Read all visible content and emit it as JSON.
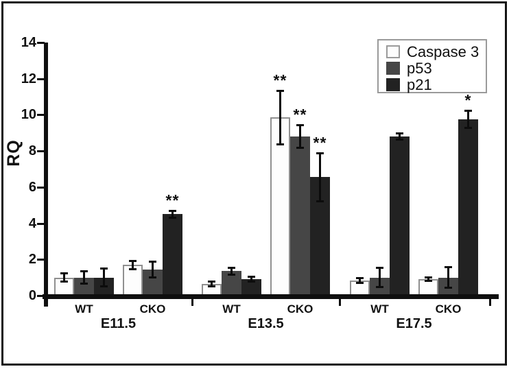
{
  "figure": {
    "border_color": "#141414",
    "background": "#ffffff"
  },
  "chart_data": {
    "type": "bar",
    "title": "",
    "xlabel": "",
    "ylabel": "RQ",
    "ylim": [
      0,
      14
    ],
    "yticks": [
      0,
      2,
      4,
      6,
      8,
      10,
      12,
      14
    ],
    "grid": false,
    "legend_position": "top-right",
    "error_bars": true,
    "series": [
      {
        "name": "Caspase 3",
        "fill": "#fdfdfd",
        "stroke": "#8f8f8f"
      },
      {
        "name": "p53",
        "fill": "#464646",
        "stroke": "#464646"
      },
      {
        "name": "p21",
        "fill": "#222222",
        "stroke": "#222222"
      }
    ],
    "groups": [
      {
        "label": "E11.5",
        "conditions": [
          {
            "label": "WT",
            "bars": [
              {
                "series": "Caspase 3",
                "value": 1.0,
                "error": 0.25,
                "sig": ""
              },
              {
                "series": "p53",
                "value": 1.0,
                "error": 0.35,
                "sig": ""
              },
              {
                "series": "p21",
                "value": 1.0,
                "error": 0.5,
                "sig": ""
              }
            ]
          },
          {
            "label": "CKO",
            "bars": [
              {
                "series": "Caspase 3",
                "value": 1.7,
                "error": 0.25,
                "sig": ""
              },
              {
                "series": "p53",
                "value": 1.45,
                "error": 0.45,
                "sig": ""
              },
              {
                "series": "p21",
                "value": 4.5,
                "error": 0.2,
                "sig": "**"
              }
            ]
          }
        ]
      },
      {
        "label": "E13.5",
        "conditions": [
          {
            "label": "WT",
            "bars": [
              {
                "series": "Caspase 3",
                "value": 0.65,
                "error": 0.15,
                "sig": ""
              },
              {
                "series": "p53",
                "value": 1.35,
                "error": 0.2,
                "sig": ""
              },
              {
                "series": "p21",
                "value": 0.9,
                "error": 0.15,
                "sig": ""
              }
            ]
          },
          {
            "label": "CKO",
            "bars": [
              {
                "series": "Caspase 3",
                "value": 9.85,
                "error": 1.5,
                "sig": "**"
              },
              {
                "series": "p53",
                "value": 8.8,
                "error": 0.65,
                "sig": "**"
              },
              {
                "series": "p21",
                "value": 6.55,
                "error": 1.35,
                "sig": "**"
              }
            ]
          }
        ]
      },
      {
        "label": "E17.5",
        "conditions": [
          {
            "label": "WT",
            "bars": [
              {
                "series": "Caspase 3",
                "value": 0.85,
                "error": 0.15,
                "sig": ""
              },
              {
                "series": "p53",
                "value": 1.0,
                "error": 0.55,
                "sig": ""
              },
              {
                "series": "p21",
                "value": 8.8,
                "error": 0.2,
                "sig": ""
              }
            ]
          },
          {
            "label": "CKO",
            "bars": [
              {
                "series": "Caspase 3",
                "value": 0.9,
                "error": 0.12,
                "sig": ""
              },
              {
                "series": "p53",
                "value": 1.0,
                "error": 0.6,
                "sig": ""
              },
              {
                "series": "p21",
                "value": 9.75,
                "error": 0.5,
                "sig": "*"
              }
            ]
          }
        ]
      }
    ]
  }
}
